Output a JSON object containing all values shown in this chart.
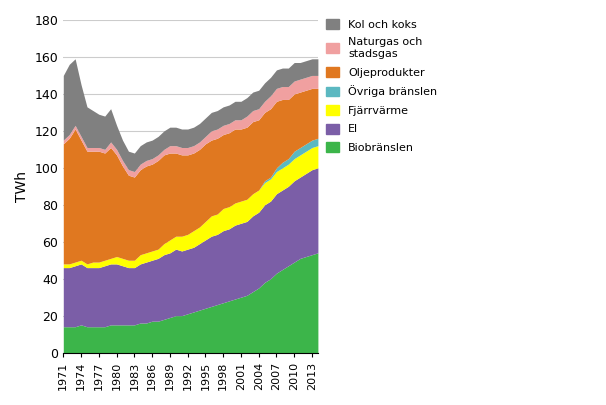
{
  "years": [
    1971,
    1972,
    1973,
    1974,
    1975,
    1976,
    1977,
    1978,
    1979,
    1980,
    1981,
    1982,
    1983,
    1984,
    1985,
    1986,
    1987,
    1988,
    1989,
    1990,
    1991,
    1992,
    1993,
    1994,
    1995,
    1996,
    1997,
    1998,
    1999,
    2000,
    2001,
    2002,
    2003,
    2004,
    2005,
    2006,
    2007,
    2008,
    2009,
    2010,
    2011,
    2012,
    2013,
    2014
  ],
  "biobranslen": [
    14,
    14,
    14,
    15,
    14,
    14,
    14,
    14,
    15,
    15,
    15,
    15,
    15,
    16,
    16,
    17,
    17,
    18,
    19,
    20,
    20,
    21,
    22,
    23,
    24,
    25,
    26,
    27,
    28,
    29,
    30,
    31,
    33,
    35,
    38,
    40,
    43,
    45,
    47,
    49,
    51,
    52,
    53,
    54
  ],
  "el": [
    32,
    32,
    33,
    33,
    32,
    32,
    32,
    33,
    33,
    33,
    32,
    31,
    31,
    32,
    33,
    33,
    34,
    35,
    35,
    36,
    35,
    35,
    35,
    36,
    37,
    38,
    38,
    39,
    39,
    40,
    40,
    40,
    41,
    41,
    42,
    42,
    43,
    43,
    43,
    44,
    44,
    45,
    46,
    46
  ],
  "fjarrvarme": [
    2,
    2,
    2,
    2,
    2,
    3,
    3,
    3,
    3,
    4,
    4,
    4,
    4,
    5,
    5,
    5,
    5,
    6,
    7,
    7,
    8,
    8,
    9,
    9,
    10,
    11,
    11,
    12,
    12,
    12,
    12,
    12,
    12,
    12,
    12,
    12,
    12,
    12,
    12,
    12,
    12,
    12,
    12,
    12
  ],
  "ovriga_branslen": [
    0,
    0,
    0,
    0,
    0,
    0,
    0,
    0,
    0,
    0,
    0,
    0,
    0,
    0,
    0,
    0,
    0,
    0,
    0,
    0,
    0,
    0,
    0,
    0,
    0,
    0,
    0,
    0,
    0,
    0,
    0,
    0,
    0,
    0,
    1,
    1,
    2,
    3,
    3,
    4,
    4,
    4,
    4,
    4
  ],
  "oljeprodukter": [
    65,
    68,
    72,
    65,
    61,
    60,
    60,
    58,
    60,
    55,
    50,
    46,
    45,
    46,
    47,
    47,
    48,
    48,
    47,
    45,
    44,
    43,
    42,
    42,
    42,
    41,
    41,
    40,
    40,
    40,
    39,
    39,
    39,
    38,
    37,
    37,
    36,
    34,
    32,
    31,
    30,
    29,
    28,
    27
  ],
  "naturgas_stadsgas": [
    2,
    2,
    2,
    2,
    2,
    2,
    2,
    2,
    3,
    3,
    3,
    3,
    3,
    3,
    3,
    3,
    3,
    3,
    4,
    4,
    4,
    4,
    4,
    4,
    4,
    5,
    5,
    5,
    5,
    5,
    5,
    6,
    6,
    6,
    6,
    7,
    7,
    7,
    7,
    7,
    7,
    7,
    7,
    7
  ],
  "kol_koks": [
    35,
    38,
    36,
    28,
    22,
    20,
    18,
    18,
    18,
    13,
    11,
    10,
    10,
    10,
    10,
    10,
    10,
    10,
    10,
    10,
    10,
    10,
    10,
    10,
    10,
    10,
    10,
    10,
    10,
    10,
    10,
    10,
    10,
    10,
    10,
    10,
    10,
    10,
    10,
    10,
    9,
    9,
    9,
    9
  ],
  "colors": {
    "biobranslen": "#3CB54A",
    "el": "#7B5EA7",
    "fjarrvarme": "#FFFF00",
    "ovriga_branslen": "#5BB8C1",
    "oljeprodukter": "#E07820",
    "naturgas_stadsgas": "#F0A0A0",
    "kol_koks": "#808080"
  },
  "legend_labels": {
    "kol_koks": "Kol och koks",
    "naturgas_stadsgas": "Naturgas och\nstadsgas",
    "oljeprodukter": "Oljeprodukter",
    "ovriga_branslen": "Övriga bränslen",
    "fjarrvarme": "Fjärrvärme",
    "el": "El",
    "biobranslen": "Biobränslen"
  },
  "ylabel": "TWh",
  "ylim": [
    0,
    180
  ],
  "yticks": [
    0,
    20,
    40,
    60,
    80,
    100,
    120,
    140,
    160,
    180
  ],
  "xtick_years": [
    1971,
    1974,
    1977,
    1980,
    1983,
    1986,
    1989,
    1992,
    1995,
    1998,
    2001,
    2004,
    2007,
    2010,
    2013
  ],
  "background_color": "#ffffff",
  "grid_color": "#cccccc"
}
